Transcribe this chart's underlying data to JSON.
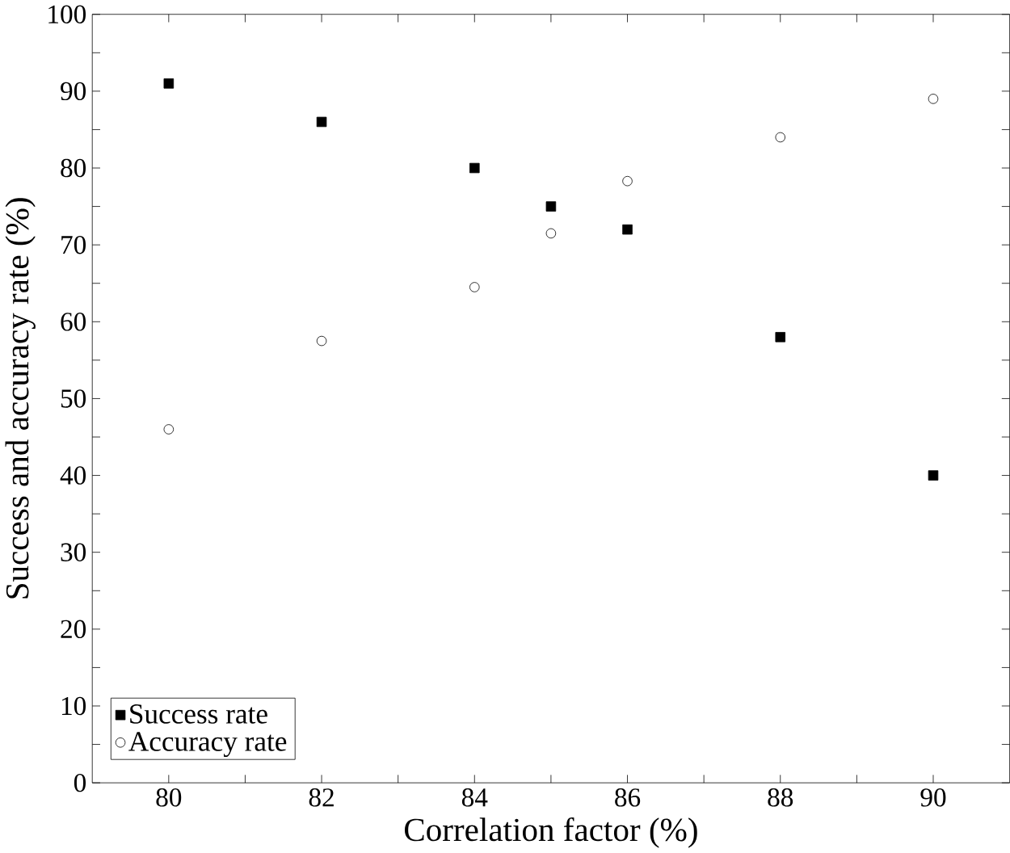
{
  "chart_data": {
    "type": "scatter",
    "xlabel": "Correlation factor (%)",
    "ylabel": "Success and accuracy rate (%)",
    "x": [
      80,
      82,
      84,
      85,
      86,
      88,
      90
    ],
    "series": [
      {
        "name": "Success rate",
        "color": "#000000",
        "marker": "square",
        "values": [
          91,
          86,
          80,
          75,
          72,
          58,
          40
        ]
      },
      {
        "name": "Accuracy rate",
        "color": "#000000",
        "marker": "circle",
        "values": [
          46,
          57.5,
          64.5,
          71.5,
          78.3,
          84,
          89
        ]
      }
    ],
    "xlim": [
      79,
      91
    ],
    "ylim": [
      0,
      100
    ],
    "xticks": [
      80,
      {
        "value": 81,
        "label": null
      },
      82,
      {
        "value": 83,
        "label": null
      },
      84,
      {
        "value": 85,
        "label": null
      },
      86,
      {
        "value": 87,
        "label": null
      },
      88,
      {
        "value": 89,
        "label": null
      },
      90
    ],
    "yticks": [
      0,
      {
        "value": 5,
        "label": null
      },
      10,
      {
        "value": 15,
        "label": null
      },
      20,
      {
        "value": 25,
        "label": null
      },
      30,
      {
        "value": 35,
        "label": null
      },
      40,
      {
        "value": 45,
        "label": null
      },
      50,
      {
        "value": 55,
        "label": null
      },
      60,
      {
        "value": 65,
        "label": null
      },
      70,
      {
        "value": 75,
        "label": null
      },
      80,
      {
        "value": 85,
        "label": null
      },
      90,
      {
        "value": 95,
        "label": null
      },
      100
    ],
    "grid": false,
    "legend": "bottom left"
  }
}
